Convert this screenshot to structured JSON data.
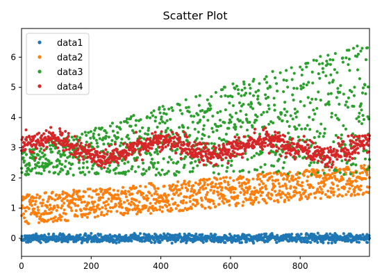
{
  "chart_data": {
    "type": "scatter",
    "title": "Scatter Plot",
    "xlabel": "",
    "ylabel": "",
    "xlim": [
      0,
      999
    ],
    "ylim": [
      -0.6,
      6.95
    ],
    "x_ticks": [
      0,
      200,
      400,
      600,
      800
    ],
    "x_tick_labels": [
      "0",
      "200",
      "400",
      "600",
      "800"
    ],
    "y_ticks": [
      0,
      1,
      2,
      3,
      4,
      5,
      6
    ],
    "y_tick_labels": [
      "0",
      "1",
      "2",
      "3",
      "4",
      "5",
      "6"
    ],
    "grid": false,
    "legend_position": "top-left",
    "n_points_per_series": 1000,
    "sample_x": [
      0,
      100,
      200,
      300,
      400,
      500,
      600,
      700,
      800,
      900,
      999
    ],
    "series": [
      {
        "name": "data1",
        "color": "#1f77b4",
        "trend_x": [
          0,
          999
        ],
        "trend_y": [
          0.0,
          0.0
        ],
        "spread": 0.28,
        "sample_y": [
          0.0,
          0.02,
          -0.03,
          0.01,
          0.0,
          -0.02,
          0.03,
          0.0,
          -0.01,
          0.02,
          0.0
        ]
      },
      {
        "name": "data2",
        "color": "#ff7f0e",
        "trend_x": [
          0,
          999
        ],
        "trend_y": [
          0.95,
          1.95
        ],
        "spread": 1.0,
        "sample_y": [
          1.0,
          1.1,
          1.2,
          1.3,
          1.4,
          1.5,
          1.6,
          1.7,
          1.8,
          1.85,
          1.95
        ]
      },
      {
        "name": "data3",
        "color": "#2ca02c",
        "trend_x": [
          0,
          999
        ],
        "trend_y": [
          2.5,
          4.3
        ],
        "spread_start": 0.8,
        "spread_end": 4.5,
        "sample_y": [
          2.5,
          2.8,
          3.0,
          3.2,
          3.5,
          3.6,
          3.8,
          4.0,
          4.1,
          4.2,
          4.3
        ]
      },
      {
        "name": "data4",
        "color": "#d62728",
        "trend_x": [
          0,
          90,
          235,
          400,
          550,
          700,
          870,
          999
        ],
        "trend_y": [
          3.1,
          3.35,
          2.6,
          3.3,
          2.75,
          3.3,
          2.7,
          3.2
        ],
        "spread": 0.75,
        "sample_y": [
          3.1,
          3.3,
          2.7,
          2.9,
          3.3,
          3.0,
          2.9,
          3.3,
          2.8,
          3.0,
          3.2
        ]
      }
    ]
  }
}
